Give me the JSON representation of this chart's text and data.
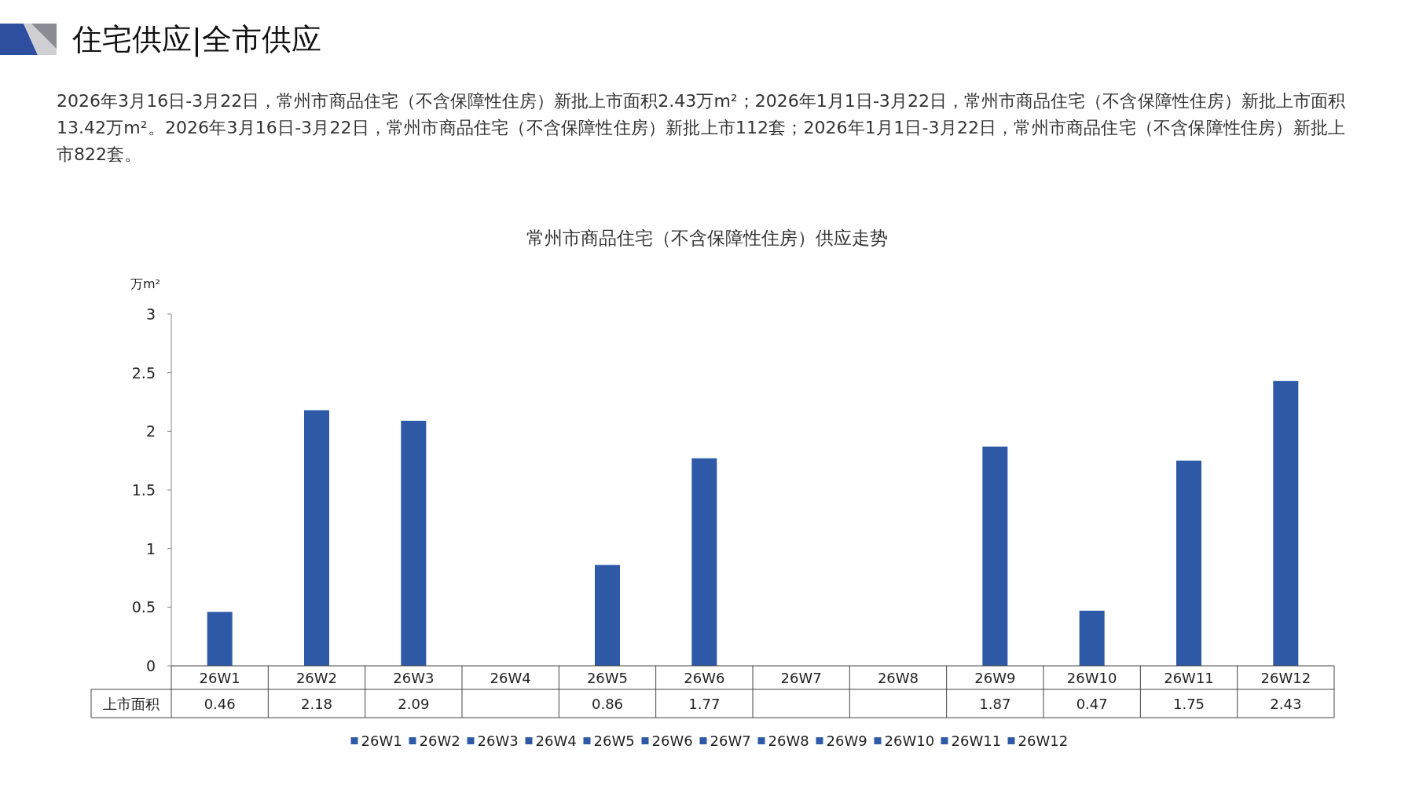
{
  "chart_data": {
    "type": "bar",
    "title": "常州市商品住宅（不含保障性住房）供应走势",
    "ylabel": "万m²",
    "annotations": [
      "住宅供应|全市供应",
      "2026年3月16日-3月22日，常州市商品住宅（不含保障性住房）新批上市面积2.43万m²；2026年1月1日-3月22日，常州市商品住宅（不含保障性住房）新批上市面积13.42万m²。2026年3月16日-3月22日，常州市商品住宅（不含保障性住房）新批上市112套；2026年1月1日-3月22日，常州市商品住宅（不含保障性住房）新批上市822套。"
    ],
    "categories": [
      "26W1",
      "26W2",
      "26W3",
      "26W4",
      "26W5",
      "26W6",
      "26W7",
      "26W8",
      "26W9",
      "26W10",
      "26W11",
      "26W12"
    ],
    "series": [
      {
        "name": "上市面积",
        "color": "#2e59a7",
        "values": [
          0.46,
          2.18,
          2.09,
          null,
          0.86,
          1.77,
          null,
          null,
          1.87,
          0.47,
          1.75,
          2.43
        ]
      }
    ],
    "ylim": [
      0,
      3
    ],
    "yticks": [
      0,
      0.5,
      1,
      1.5,
      2,
      2.5,
      3
    ],
    "data_labels": true,
    "legend": "bottom",
    "grid": false
  }
}
